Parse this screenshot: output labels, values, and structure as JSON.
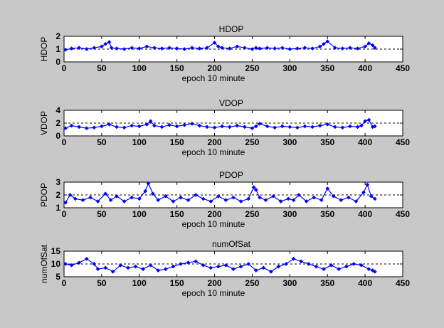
{
  "figure": {
    "background": "#c8c8c8",
    "axes_background": "#ffffff",
    "marker_color": "#0000ff"
  },
  "chart_data": [
    {
      "type": "line",
      "title": "HDOP",
      "xlabel": "epoch 10 minute",
      "ylabel": "HDOP",
      "xlim": [
        0,
        450
      ],
      "ylim": [
        0,
        2
      ],
      "xticks": [
        "0",
        "50",
        "100",
        "150",
        "200",
        "250",
        "300",
        "350",
        "400",
        "450"
      ],
      "yticks": [
        "0",
        "1",
        "2"
      ],
      "reference_line": 1,
      "marker": "diamond",
      "series": [
        {
          "x": [
            2,
            10,
            20,
            30,
            40,
            50,
            55,
            60,
            63,
            70,
            80,
            90,
            100,
            110,
            120,
            130,
            140,
            150,
            160,
            170,
            180,
            190,
            200,
            205,
            210,
            220,
            230,
            240,
            250,
            255,
            260,
            270,
            280,
            290,
            300,
            310,
            320,
            330,
            340,
            345,
            350,
            360,
            370,
            380,
            390,
            400,
            405,
            410,
            413
          ],
          "values": [
            0.95,
            1.05,
            1.1,
            1.0,
            1.1,
            1.2,
            1.4,
            1.55,
            1.1,
            1.05,
            1.0,
            1.1,
            1.05,
            1.2,
            1.1,
            1.05,
            1.1,
            1.05,
            1.0,
            1.1,
            1.05,
            1.1,
            1.5,
            1.2,
            1.1,
            1.05,
            1.2,
            1.1,
            1.0,
            1.1,
            1.05,
            1.1,
            1.05,
            1.1,
            1.0,
            1.05,
            1.1,
            1.05,
            1.2,
            1.4,
            1.6,
            1.1,
            1.05,
            1.1,
            1.05,
            1.2,
            1.45,
            1.3,
            1.1
          ]
        }
      ]
    },
    {
      "type": "line",
      "title": "VDOP",
      "xlabel": "epoch 10 minute",
      "ylabel": "VDOP",
      "xlim": [
        0,
        450
      ],
      "ylim": [
        0,
        4
      ],
      "xticks": [
        "0",
        "50",
        "100",
        "150",
        "200",
        "250",
        "300",
        "350",
        "400",
        "450"
      ],
      "yticks": [
        "0",
        "2",
        "4"
      ],
      "reference_line": 2,
      "marker": "diamond",
      "series": [
        {
          "x": [
            2,
            10,
            20,
            30,
            40,
            50,
            60,
            70,
            80,
            90,
            100,
            110,
            115,
            120,
            130,
            140,
            150,
            160,
            170,
            180,
            190,
            200,
            210,
            220,
            230,
            240,
            250,
            255,
            260,
            270,
            280,
            290,
            300,
            310,
            320,
            330,
            340,
            350,
            360,
            370,
            380,
            390,
            395,
            400,
            405,
            410,
            413
          ],
          "values": [
            1.2,
            1.6,
            1.4,
            1.2,
            1.3,
            1.5,
            1.8,
            1.4,
            1.3,
            1.6,
            1.5,
            1.8,
            2.3,
            1.6,
            1.4,
            1.7,
            1.5,
            1.7,
            1.9,
            1.6,
            1.4,
            1.3,
            1.5,
            1.4,
            1.6,
            1.4,
            1.2,
            1.5,
            1.9,
            1.5,
            1.3,
            1.5,
            1.4,
            1.3,
            1.5,
            1.4,
            1.6,
            1.8,
            1.4,
            1.3,
            1.5,
            1.4,
            1.6,
            2.3,
            2.5,
            1.4,
            1.5
          ]
        }
      ]
    },
    {
      "type": "line",
      "title": "PDOP",
      "xlabel": "epoch 10 minute",
      "ylabel": "PDOP",
      "xlim": [
        0,
        450
      ],
      "ylim": [
        1,
        3
      ],
      "xticks": [
        "0",
        "50",
        "100",
        "150",
        "200",
        "250",
        "300",
        "350",
        "400",
        "450"
      ],
      "yticks": [
        "1",
        "2",
        "3"
      ],
      "reference_line": 2,
      "marker": "diamond",
      "series": [
        {
          "x": [
            2,
            8,
            15,
            25,
            35,
            45,
            55,
            62,
            70,
            80,
            90,
            100,
            108,
            112,
            118,
            125,
            135,
            145,
            155,
            165,
            175,
            185,
            195,
            205,
            215,
            225,
            235,
            245,
            252,
            255,
            260,
            268,
            278,
            288,
            298,
            305,
            312,
            322,
            332,
            342,
            350,
            358,
            368,
            378,
            388,
            398,
            403,
            408,
            413
          ],
          "values": [
            1.4,
            2.0,
            1.7,
            1.6,
            1.8,
            1.5,
            2.1,
            1.6,
            1.9,
            1.5,
            1.8,
            1.7,
            2.3,
            2.9,
            2.1,
            1.6,
            1.9,
            1.5,
            1.8,
            1.6,
            2.0,
            1.7,
            1.5,
            1.9,
            1.6,
            1.8,
            1.5,
            1.7,
            2.6,
            2.4,
            1.8,
            1.6,
            1.9,
            1.5,
            1.7,
            1.6,
            2.0,
            1.5,
            1.8,
            1.6,
            2.5,
            1.9,
            1.6,
            1.8,
            1.5,
            2.2,
            2.8,
            1.9,
            1.7
          ]
        }
      ]
    },
    {
      "type": "line",
      "title": "numOfSat",
      "xlabel": "epoch 10 minute",
      "ylabel": "numOfSat",
      "xlim": [
        0,
        450
      ],
      "ylim": [
        5,
        15
      ],
      "xticks": [
        "0",
        "50",
        "100",
        "150",
        "200",
        "250",
        "300",
        "350",
        "400",
        "450"
      ],
      "yticks": [
        "5",
        "10",
        "15"
      ],
      "reference_line": 10,
      "marker": "diamond",
      "series": [
        {
          "x": [
            2,
            10,
            20,
            30,
            40,
            45,
            55,
            65,
            75,
            85,
            95,
            105,
            115,
            125,
            135,
            145,
            155,
            165,
            175,
            185,
            195,
            205,
            215,
            225,
            235,
            245,
            255,
            265,
            275,
            285,
            295,
            305,
            315,
            325,
            335,
            345,
            355,
            365,
            375,
            385,
            395,
            405,
            410,
            413
          ],
          "values": [
            10,
            9.5,
            10.5,
            12,
            10,
            8,
            8.5,
            7,
            9.5,
            8.5,
            9,
            8,
            9.5,
            7.5,
            8,
            9,
            10,
            10.5,
            11,
            9.5,
            8.5,
            9,
            9.5,
            8,
            9,
            10,
            7.5,
            8.5,
            7,
            9,
            10,
            12,
            11,
            10,
            9,
            8,
            9.5,
            8,
            9,
            10,
            9.5,
            8,
            7.5,
            7
          ]
        }
      ]
    }
  ]
}
